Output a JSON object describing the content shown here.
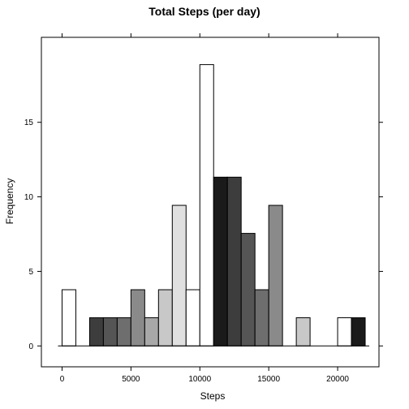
{
  "chart_data": {
    "type": "bar",
    "title": "Total Steps (per day)",
    "xlabel": "Steps",
    "ylabel": "Frequency",
    "xlim": [
      -1500,
      23000
    ],
    "ylim": [
      -1.4,
      20.7
    ],
    "x_ticks": [
      0,
      5000,
      10000,
      15000,
      20000
    ],
    "y_ticks": [
      0,
      5,
      10,
      15
    ],
    "bin_width": 1000,
    "bins": [
      {
        "start": 0,
        "end": 1000,
        "value": 3.77,
        "color": "#ffffff"
      },
      {
        "start": 1000,
        "end": 2000,
        "value": 0,
        "color": "#ffffff"
      },
      {
        "start": 2000,
        "end": 3000,
        "value": 1.89,
        "color": "#3d3d3d"
      },
      {
        "start": 3000,
        "end": 4000,
        "value": 1.89,
        "color": "#555555"
      },
      {
        "start": 4000,
        "end": 5000,
        "value": 1.89,
        "color": "#6e6e6e"
      },
      {
        "start": 5000,
        "end": 6000,
        "value": 3.77,
        "color": "#8a8a8a"
      },
      {
        "start": 6000,
        "end": 7000,
        "value": 1.89,
        "color": "#a8a8a8"
      },
      {
        "start": 7000,
        "end": 8000,
        "value": 3.77,
        "color": "#c8c8c8"
      },
      {
        "start": 8000,
        "end": 9000,
        "value": 9.43,
        "color": "#e0e0e0"
      },
      {
        "start": 9000,
        "end": 10000,
        "value": 3.77,
        "color": "#ffffff"
      },
      {
        "start": 10000,
        "end": 11000,
        "value": 18.87,
        "color": "#ffffff"
      },
      {
        "start": 11000,
        "end": 12000,
        "value": 11.32,
        "color": "#1a1a1a"
      },
      {
        "start": 12000,
        "end": 13000,
        "value": 11.32,
        "color": "#3d3d3d"
      },
      {
        "start": 13000,
        "end": 14000,
        "value": 7.55,
        "color": "#555555"
      },
      {
        "start": 14000,
        "end": 15000,
        "value": 3.77,
        "color": "#6e6e6e"
      },
      {
        "start": 15000,
        "end": 16000,
        "value": 9.43,
        "color": "#8a8a8a"
      },
      {
        "start": 16000,
        "end": 17000,
        "value": 0,
        "color": "#a8a8a8"
      },
      {
        "start": 17000,
        "end": 18000,
        "value": 1.89,
        "color": "#c8c8c8"
      },
      {
        "start": 18000,
        "end": 19000,
        "value": 0,
        "color": "#e0e0e0"
      },
      {
        "start": 19000,
        "end": 20000,
        "value": 0,
        "color": "#ffffff"
      },
      {
        "start": 20000,
        "end": 21000,
        "value": 1.89,
        "color": "#ffffff"
      },
      {
        "start": 21000,
        "end": 22000,
        "value": 1.89,
        "color": "#1a1a1a"
      }
    ],
    "grid": false,
    "legend": "none"
  }
}
